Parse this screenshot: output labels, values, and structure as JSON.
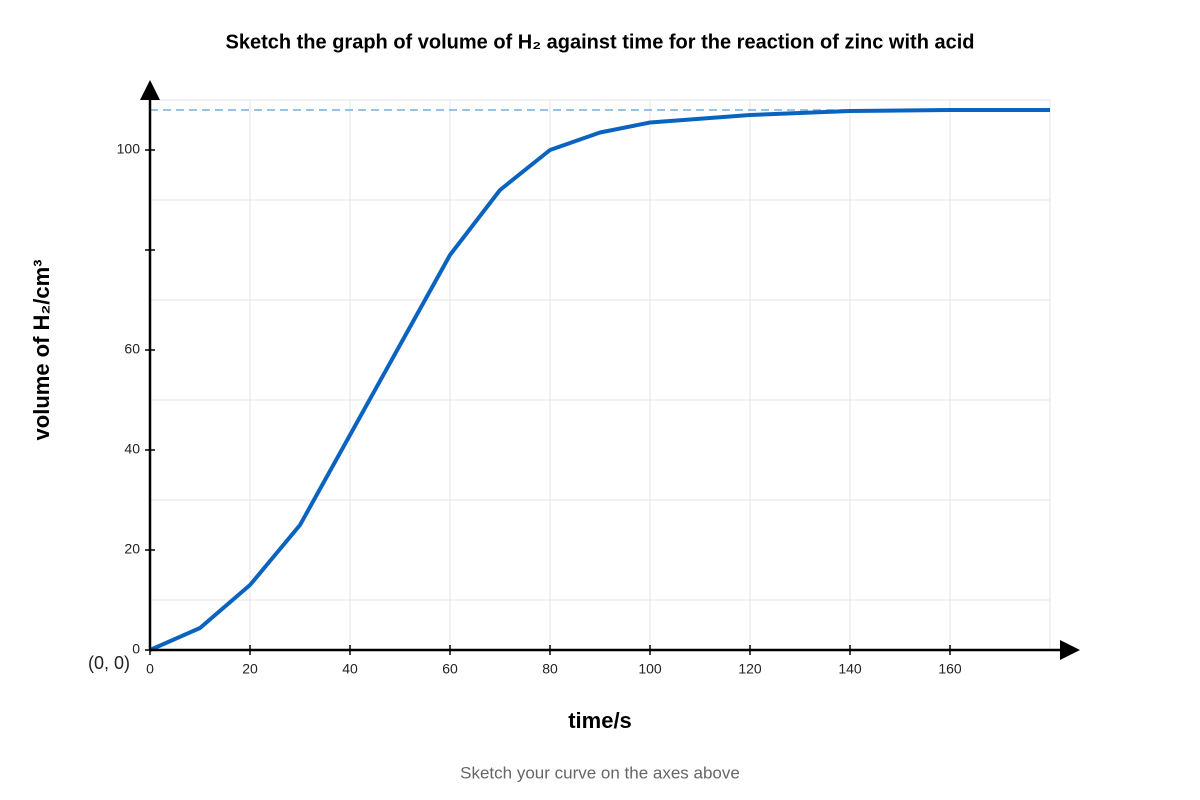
{
  "chart_data": {
    "type": "line",
    "title": "Sketch the graph of volume of H₂ against time for the reaction of zinc with acid",
    "x_label": "time/s",
    "y_label": "volume of H₂/cm³",
    "origin_label": "(0, 0)",
    "footer": "Sketch your curve on the axes above",
    "x": [
      0,
      10,
      20,
      30,
      40,
      50,
      60,
      70,
      80,
      90,
      100,
      120,
      140,
      160,
      180
    ],
    "series": [
      {
        "name": "volume of H₂",
        "color": "#0a64bf",
        "values": [
          0,
          4.4,
          13,
          25,
          43,
          61,
          79,
          92,
          100,
          103.5,
          105.5,
          107,
          107.8,
          108,
          108
        ]
      }
    ],
    "asymptote": {
      "value": 108,
      "color": "#7aaedc"
    },
    "xlim": [
      0,
      180
    ],
    "ylim": [
      0,
      110
    ],
    "xticks": [
      0,
      20,
      40,
      60,
      80,
      100,
      120,
      140,
      160
    ],
    "yticks": [
      0,
      20,
      40,
      60,
      {
        "value": 80,
        "label": null
      },
      100
    ],
    "xgrid": [
      20,
      40,
      60,
      80,
      100,
      120,
      140,
      160,
      180
    ],
    "ygrid": [
      10,
      30,
      50,
      70,
      90,
      110
    ],
    "grid": true
  }
}
